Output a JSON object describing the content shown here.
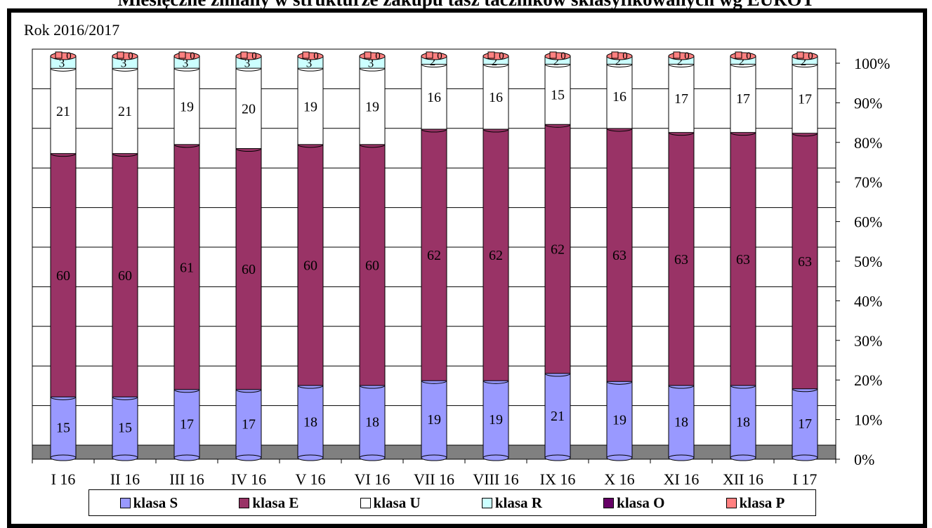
{
  "page_title": "Miesięczne zmiany w strukturze zakupu tasz tacznikow sklasyfikowanych wg EUROT",
  "chart_data": {
    "type": "bar",
    "stacked": "percent",
    "subtitle": "Rok 2016/2017",
    "categories": [
      "I 16",
      "II 16",
      "III 16",
      "IV 16",
      "V 16",
      "VI 16",
      "VII 16",
      "VIII 16",
      "IX 16",
      "X 16",
      "XI 16",
      "XII 16",
      "I 17"
    ],
    "series": [
      {
        "name": "klasa S",
        "color": "#9999ff",
        "label_color": "#000000",
        "values": [
          15,
          15,
          17,
          17,
          18,
          18,
          19,
          19,
          21,
          19,
          18,
          18,
          17
        ]
      },
      {
        "name": "klasa E",
        "color": "#993366",
        "label_color": "#000000",
        "values": [
          60,
          60,
          61,
          60,
          60,
          60,
          62,
          62,
          62,
          63,
          63,
          63,
          63
        ]
      },
      {
        "name": "klasa U",
        "color": "#ffffff",
        "label_color": "#000000",
        "values": [
          21,
          21,
          19,
          20,
          19,
          19,
          16,
          16,
          15,
          16,
          17,
          17,
          17
        ]
      },
      {
        "name": "klasa R",
        "color": "#ccffff",
        "label_color": "#000000",
        "values": [
          3,
          3,
          3,
          3,
          3,
          3,
          2,
          2,
          2,
          2,
          2,
          2,
          2
        ]
      },
      {
        "name": "klasa O",
        "color": "#660066",
        "label_color": "#000000",
        "values": [
          0,
          0,
          0,
          0,
          0,
          0,
          0,
          0,
          0,
          0,
          0,
          0,
          0
        ]
      },
      {
        "name": "klasa P",
        "color": "#ff8080",
        "label_color": "#000000",
        "values": [
          0,
          0,
          0,
          0,
          0,
          0,
          0,
          0,
          0,
          0,
          0,
          0,
          0
        ]
      }
    ],
    "y_ticks": [
      "0%",
      "10%",
      "20%",
      "30%",
      "40%",
      "50%",
      "60%",
      "70%",
      "80%",
      "90%",
      "100%"
    ],
    "ylim": [
      0,
      100
    ],
    "grid": true,
    "legend_position": "bottom",
    "floor_color": "#808080"
  }
}
